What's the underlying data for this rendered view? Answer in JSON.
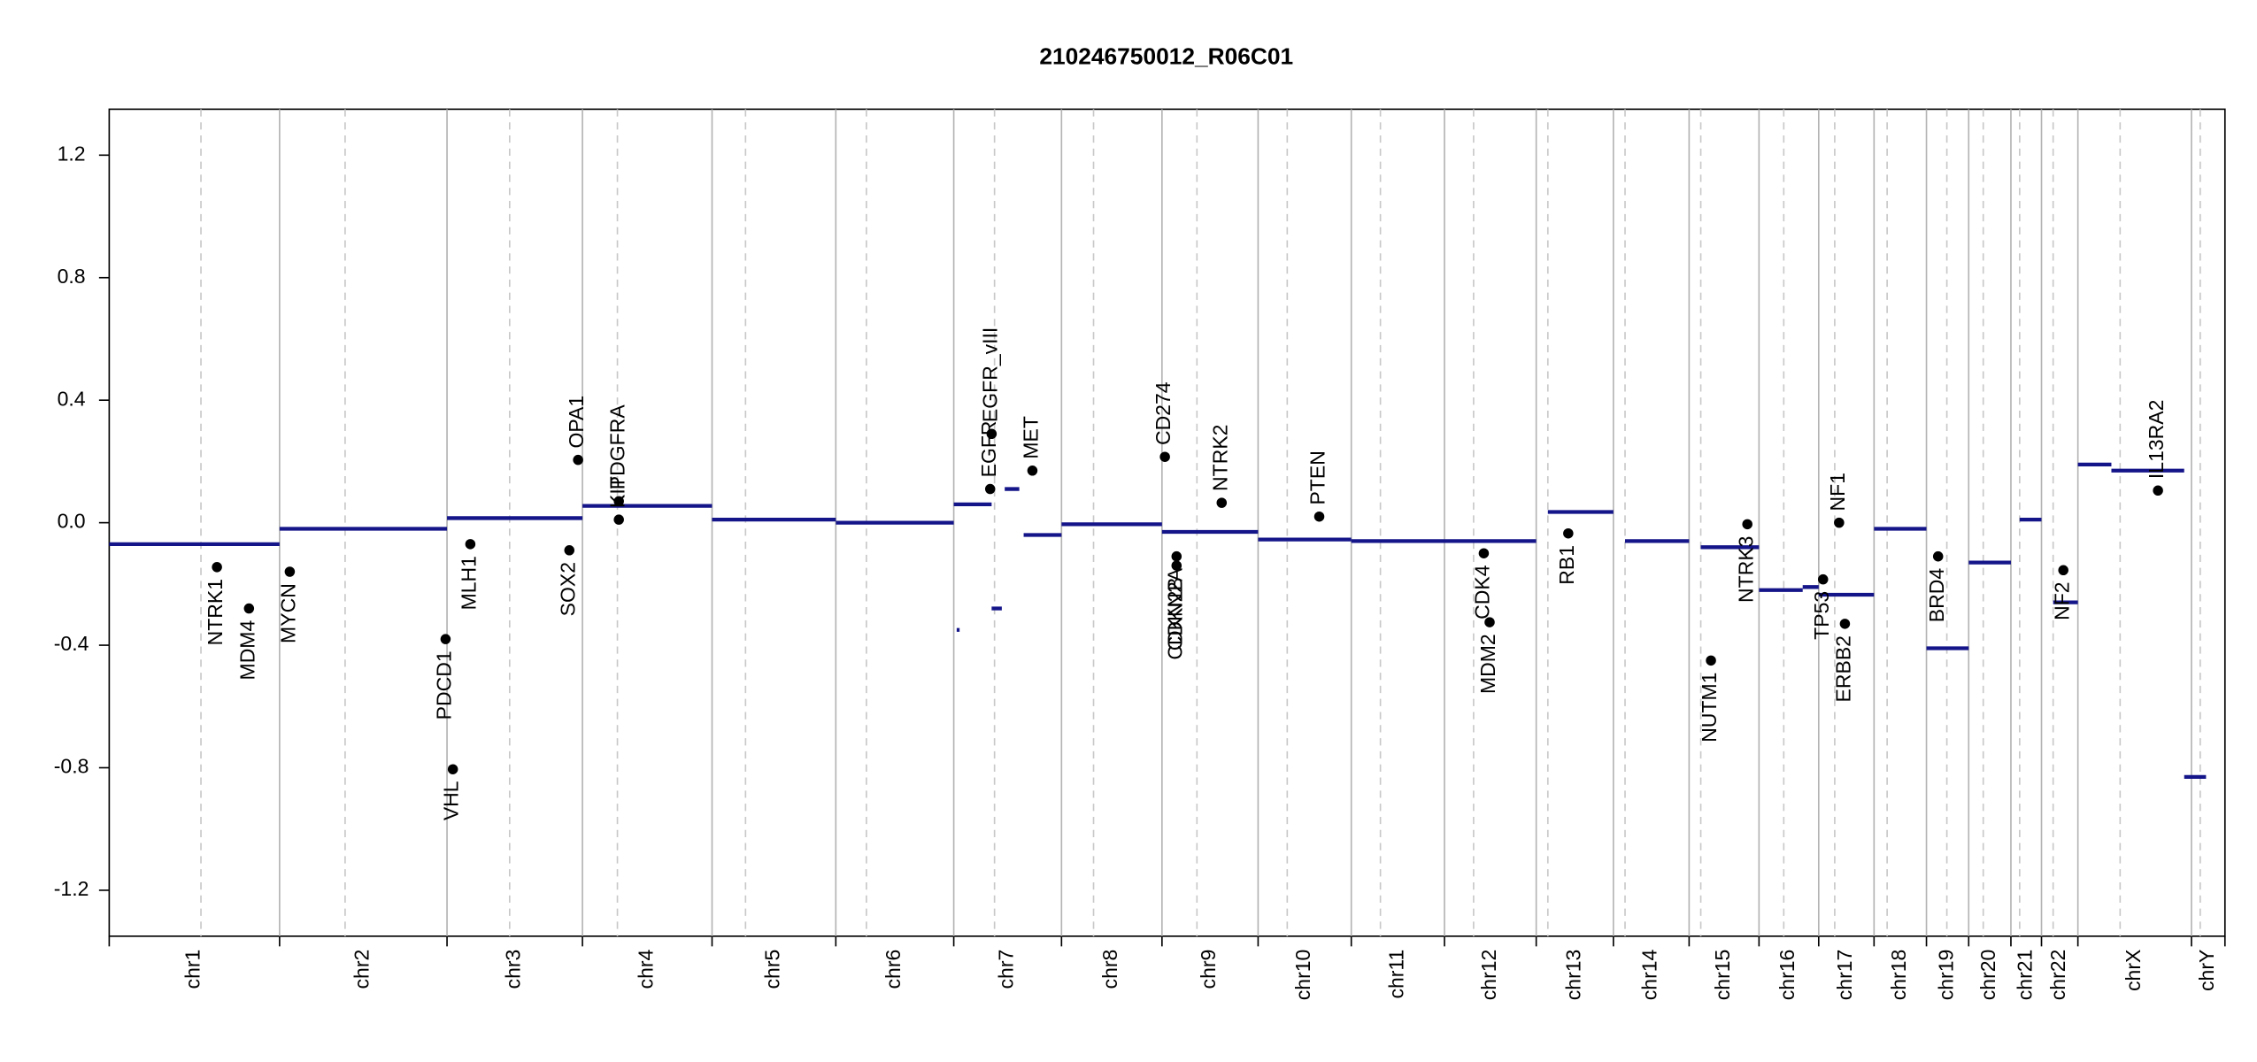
{
  "chart_data": {
    "type": "copy-number",
    "title": "210246750012_R06C01",
    "ylim": [
      -1.35,
      1.35
    ],
    "yticks": [
      1.2,
      0.8,
      0.4,
      {
        "value": 0,
        "label": "0.0"
      },
      -0.4,
      -0.8,
      -1.2
    ],
    "xlim": [
      0,
      1453
    ],
    "segment_color": "#15158a",
    "gene_color": "#000000",
    "chromosomes": {
      "categories": [
        "chr1",
        "chr2",
        "chr3",
        "chr4",
        "chr5",
        "chr6",
        "chr7",
        "chr8",
        "chr9",
        "chr10",
        "chr11",
        "chr12",
        "chr13",
        "chr14",
        "chr15",
        "chr16",
        "chr17",
        "chr18",
        "chr19",
        "chr20",
        "chr21",
        "chr22",
        "chrX",
        "chrY"
      ],
      "boundaries": [
        0,
        117,
        232,
        325,
        414,
        499,
        580,
        654,
        723,
        789,
        853,
        917,
        980,
        1033,
        1085,
        1133,
        1174,
        1212,
        1248,
        1277,
        1306,
        1327,
        1352,
        1430,
        1453
      ],
      "centromeres": [
        63,
        162,
        275,
        349,
        437,
        520,
        608,
        676,
        747,
        809,
        873,
        937,
        988,
        1041,
        1093,
        1150,
        1185,
        1221,
        1262,
        1287,
        1312,
        1335,
        1381,
        1436
      ]
    },
    "segments": {
      "x0": [
        0,
        117,
        232,
        325,
        414,
        499,
        580,
        582,
        606,
        615,
        628,
        654,
        723,
        789,
        853,
        917,
        988,
        1041,
        1093,
        1133,
        1163,
        1174,
        1212,
        1248,
        1277,
        1312,
        1335,
        1352,
        1375,
        1425
      ],
      "x1": [
        117,
        232,
        325,
        414,
        499,
        580,
        606,
        584,
        613,
        625,
        654,
        723,
        789,
        853,
        917,
        980,
        1033,
        1085,
        1133,
        1163,
        1174,
        1212,
        1248,
        1277,
        1306,
        1327,
        1352,
        1375,
        1425,
        1440
      ],
      "values": [
        -0.07,
        -0.02,
        0.015,
        0.055,
        0.01,
        0.0,
        0.06,
        -0.35,
        -0.28,
        0.11,
        -0.04,
        -0.005,
        -0.03,
        -0.055,
        -0.06,
        -0.06,
        0.035,
        -0.06,
        -0.08,
        -0.22,
        -0.21,
        -0.235,
        -0.02,
        -0.41,
        -0.13,
        0.01,
        -0.26,
        0.19,
        0.17,
        -0.83
      ]
    },
    "genes": {
      "names": [
        "NTRK1",
        "MDM4",
        "MYCN",
        "PDCD1",
        "VHL",
        "MLH1",
        "SOX2",
        "OPA1",
        "PDGFRA",
        "KIT",
        "EGFR",
        "EGFR_vIII",
        "MET",
        "CD274",
        "CDKN2A",
        "CDKN2B",
        "NTRK2",
        "PTEN",
        "CDK4",
        "MDM2",
        "RB1",
        "NUTM1",
        "NTRK3",
        "TP53",
        "NF1",
        "ERBB2",
        "BRD4",
        "NF2",
        "IL13RA2"
      ],
      "x": [
        74,
        96,
        124,
        231,
        236,
        248,
        316,
        322,
        350,
        350,
        605,
        606,
        634,
        725,
        733,
        733,
        764,
        831,
        944,
        948,
        1002,
        1100,
        1125,
        1177,
        1188,
        1192,
        1256,
        1342,
        1407
      ],
      "values": [
        -0.145,
        -0.28,
        -0.16,
        -0.38,
        -0.805,
        -0.07,
        -0.09,
        0.205,
        0.07,
        0.01,
        0.11,
        0.29,
        0.17,
        0.215,
        -0.11,
        -0.14,
        0.065,
        0.02,
        -0.1,
        -0.325,
        -0.035,
        -0.45,
        -0.005,
        -0.185,
        0.0,
        -0.33,
        -0.11,
        -0.155,
        0.105
      ]
    }
  }
}
